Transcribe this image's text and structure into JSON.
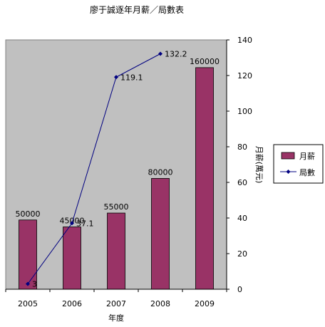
{
  "chart_data": {
    "type": "bar",
    "title": "廖于誠逐年月薪／局數表",
    "xlabel": "年度",
    "ylabel": "",
    "y2label": "月薪(萬元)",
    "categories": [
      "2005",
      "2006",
      "2007",
      "2008",
      "2009"
    ],
    "series": [
      {
        "name": "月薪",
        "type": "bar",
        "axis": "y_left_hidden",
        "values": [
          50000,
          45000,
          55000,
          80000,
          160000
        ],
        "labels": [
          "50000",
          "45000",
          "55000",
          "80000",
          "160000"
        ],
        "color": "#993366"
      },
      {
        "name": "局數",
        "type": "line",
        "axis": "y2",
        "values": [
          3,
          37.1,
          119.1,
          132.2,
          null
        ],
        "labels": [
          "3",
          "37.1",
          "119.1",
          "132.2",
          ""
        ],
        "color": "#000080"
      }
    ],
    "bar_ylim": [
      0,
      180000
    ],
    "y2lim": [
      0,
      140
    ],
    "y2ticks": [
      "0",
      "20",
      "40",
      "60",
      "80",
      "100",
      "120",
      "140"
    ],
    "grid": false,
    "legend": "right",
    "plot_background": "#c0c0c0"
  }
}
